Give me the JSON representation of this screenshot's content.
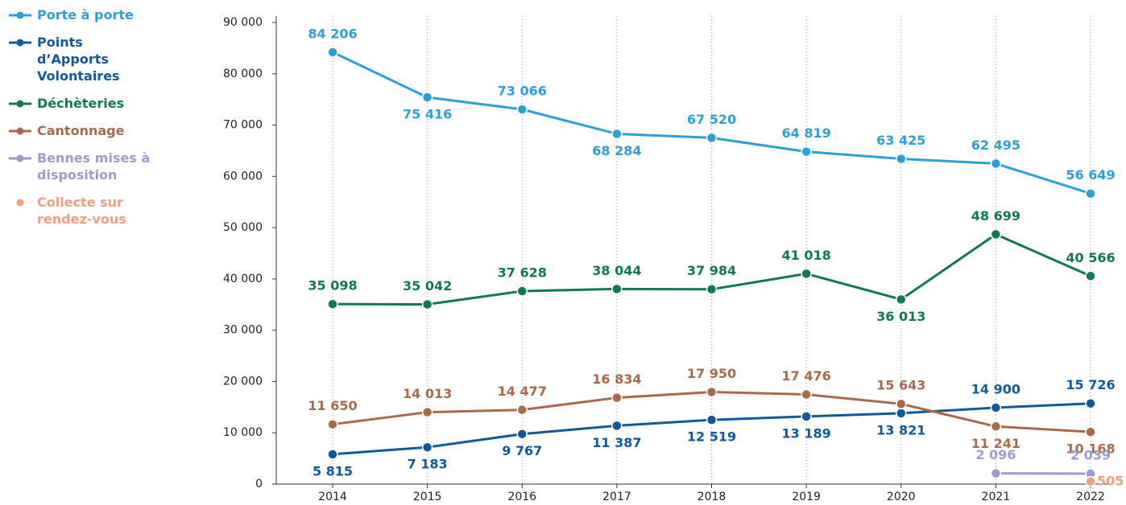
{
  "chart_data": {
    "type": "line",
    "categories": [
      "2014",
      "2015",
      "2016",
      "2017",
      "2018",
      "2019",
      "2020",
      "2021",
      "2022"
    ],
    "ylim": [
      0,
      90000
    ],
    "yticks": [
      0,
      {
        "value": 10000,
        "label": "10 000"
      },
      {
        "value": 20000,
        "label": "20 000"
      },
      {
        "value": 30000,
        "label": "30 000"
      },
      {
        "value": 40000,
        "label": "40 000"
      },
      {
        "value": 50000,
        "label": "50 000"
      },
      {
        "value": 60000,
        "label": "60 000"
      },
      {
        "value": 70000,
        "label": "70 000"
      },
      {
        "value": 80000,
        "label": "80 000"
      },
      {
        "value": 90000,
        "label": "90 000"
      }
    ],
    "grid": true,
    "series": [
      {
        "name": "Porte à porte",
        "color": "#2a9fd8",
        "values": [
          84206,
          75416,
          73066,
          68284,
          67520,
          64819,
          63425,
          62495,
          56649
        ],
        "value_labels": [
          "84 206",
          "75 416",
          "73 066",
          "68 284",
          "67 520",
          "64 819",
          "63 425",
          "62 495",
          "56 649"
        ]
      },
      {
        "name": "Points d’Apports Volontaires",
        "color": "#0e5a9a",
        "values": [
          5815,
          7183,
          9767,
          11387,
          12519,
          13189,
          13821,
          14900,
          15726
        ],
        "value_labels": [
          "5 815",
          "7 183",
          "9 767",
          "11 387",
          "12 519",
          "13 189",
          "13 821",
          "14 900",
          "15 726"
        ]
      },
      {
        "name": "Déchèteries",
        "color": "#107a4f",
        "values": [
          35098,
          35042,
          37628,
          38044,
          37984,
          41018,
          36013,
          48699,
          40566
        ],
        "value_labels": [
          "35 098",
          "35 042",
          "37 628",
          "38 044",
          "37 984",
          "41 018",
          "36 013",
          "48 699",
          "40 566"
        ]
      },
      {
        "name": "Cantonnage",
        "color": "#a86a4a",
        "values": [
          11650,
          14013,
          14477,
          16834,
          17950,
          17476,
          15643,
          11241,
          10168
        ],
        "value_labels": [
          "11 650",
          "14 013",
          "14 477",
          "16 834",
          "17 950",
          "17 476",
          "15 643",
          "11 241",
          "10 168"
        ]
      },
      {
        "name": "Bennes mises à disposition",
        "color": "#9b9bd0",
        "values": [
          null,
          null,
          null,
          null,
          null,
          null,
          null,
          2096,
          2039
        ],
        "value_labels": [
          null,
          null,
          null,
          null,
          null,
          null,
          null,
          "2 096",
          "2 039"
        ]
      },
      {
        "name": "Collecte sur rendez-vous",
        "color": "#f0a080",
        "values": [
          null,
          null,
          null,
          null,
          null,
          null,
          null,
          null,
          505
        ]
      }
    ]
  }
}
